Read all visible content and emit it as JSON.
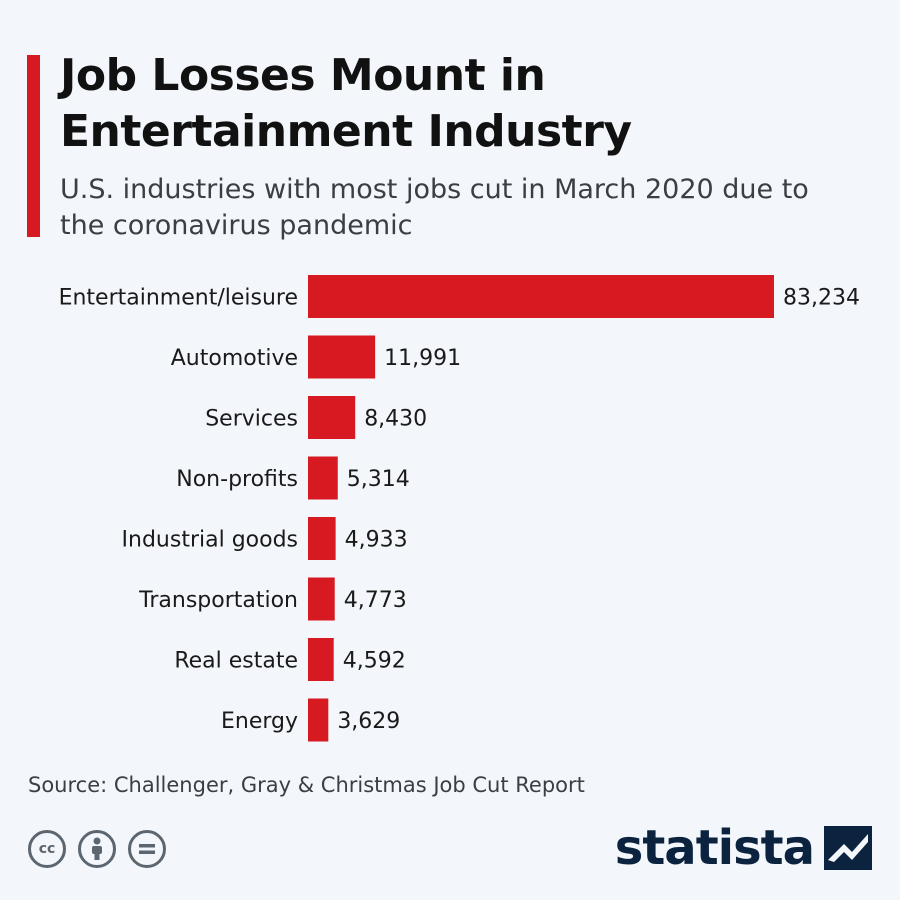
{
  "header": {
    "title": "Job Losses Mount in Entertainment Industry",
    "subtitle": "U.S. industries with most jobs cut in March 2020 due to the coronavirus pandemic"
  },
  "footer": {
    "source": "Source: Challenger, Gray & Christmas Job Cut Report",
    "brand": "statista",
    "license_icons": [
      "cc-icon",
      "by-icon",
      "nd-icon"
    ]
  },
  "colors": {
    "bar": "#d71921",
    "background": "#f3f6fa",
    "brand": "#0c2340"
  },
  "chart_data": {
    "type": "bar",
    "orientation": "horizontal",
    "title": "Job Losses Mount in Entertainment Industry",
    "subtitle": "U.S. industries with most jobs cut in March 2020 due to the coronavirus pandemic",
    "categories": [
      "Entertainment/leisure",
      "Automotive",
      "Services",
      "Non-profits",
      "Industrial goods",
      "Transportation",
      "Real estate",
      "Energy"
    ],
    "values": [
      83234,
      11991,
      8430,
      5314,
      4933,
      4773,
      4592,
      3629
    ],
    "value_labels": [
      "83,234",
      "11,991",
      "8,430",
      "5,314",
      "4,933",
      "4,773",
      "4,592",
      "3,629"
    ],
    "xlabel": "",
    "ylabel": "",
    "xlim": [
      0,
      83234
    ],
    "grid": false,
    "legend": "none"
  }
}
